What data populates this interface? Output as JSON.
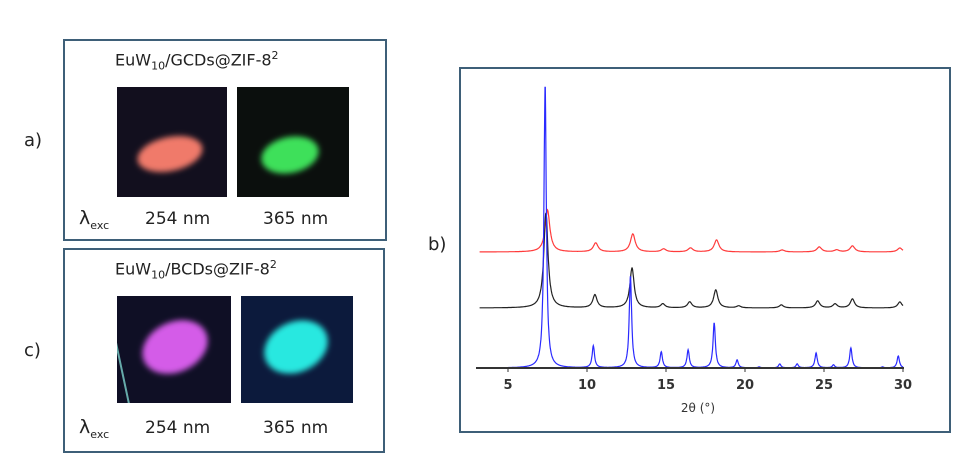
{
  "panels": {
    "a": "a)",
    "b": "b)",
    "c": "c)"
  },
  "panel_a": {
    "title_main": "EuW",
    "title_sub": "10",
    "title_rest": "/GCDs@ZIF-8",
    "title_sup": "2",
    "lambda": "λ",
    "lambda_sub": "exc",
    "ex1": "254 nm",
    "ex2": "365 nm",
    "color1": "#f07a6a",
    "color2": "#3ee05a"
  },
  "panel_c": {
    "title_main": "EuW",
    "title_sub": "10",
    "title_rest": "/BCDs@ZIF-8",
    "title_sup": "2",
    "lambda": "λ",
    "lambda_sub": "exc",
    "ex1": "254 nm",
    "ex2": "365 nm",
    "color1": "#d45ce8",
    "color2": "#28e8e0"
  },
  "chart_data": {
    "type": "line",
    "xlabel": "2θ (°)",
    "ylabel": "",
    "xlim": [
      3,
      30
    ],
    "xticks": [
      5,
      10,
      15,
      20,
      25,
      30
    ],
    "grid": false,
    "series": [
      {
        "name": "red",
        "color": "#ff3b3b",
        "offset": 116,
        "width": 0.18,
        "peaks": [
          [
            7.5,
            42
          ],
          [
            10.55,
            9
          ],
          [
            12.9,
            18
          ],
          [
            14.85,
            3
          ],
          [
            16.55,
            4
          ],
          [
            18.2,
            12
          ],
          [
            22.35,
            2
          ],
          [
            24.7,
            5
          ],
          [
            25.8,
            2
          ],
          [
            26.8,
            6
          ],
          [
            29.8,
            4
          ]
        ]
      },
      {
        "name": "black",
        "color": "#222222",
        "offset": 60,
        "width": 0.16,
        "peaks": [
          [
            7.4,
            95
          ],
          [
            10.5,
            13
          ],
          [
            12.85,
            40
          ],
          [
            14.8,
            4
          ],
          [
            16.5,
            6
          ],
          [
            18.15,
            18
          ],
          [
            19.6,
            2
          ],
          [
            22.3,
            3
          ],
          [
            24.6,
            7
          ],
          [
            25.7,
            4
          ],
          [
            26.8,
            9
          ],
          [
            29.8,
            6
          ]
        ]
      },
      {
        "name": "blue",
        "color": "#2a2aff",
        "offset": 0,
        "width": 0.09,
        "peaks": [
          [
            7.35,
            284
          ],
          [
            10.4,
            22
          ],
          [
            12.75,
            92
          ],
          [
            14.7,
            16
          ],
          [
            16.4,
            18
          ],
          [
            18.05,
            45
          ],
          [
            19.5,
            8
          ],
          [
            20.9,
            1
          ],
          [
            22.2,
            4
          ],
          [
            23.3,
            4
          ],
          [
            24.5,
            15
          ],
          [
            25.6,
            3
          ],
          [
            26.7,
            20
          ],
          [
            28.7,
            1
          ],
          [
            29.7,
            12
          ]
        ]
      }
    ]
  }
}
